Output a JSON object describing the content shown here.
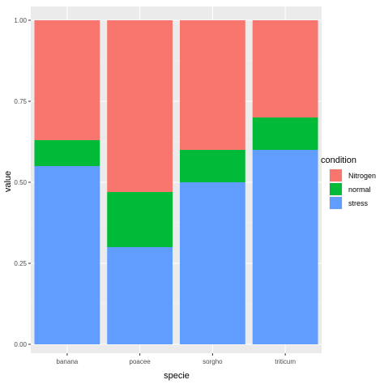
{
  "chart_data": {
    "type": "bar",
    "stacked": true,
    "categories": [
      "banana",
      "poacee",
      "sorgho",
      "triticum"
    ],
    "series": [
      {
        "name": "stress",
        "values": [
          0.55,
          0.3,
          0.5,
          0.6
        ],
        "color": "#619CFF"
      },
      {
        "name": "normal",
        "values": [
          0.08,
          0.17,
          0.1,
          0.1
        ],
        "color": "#00BA38"
      },
      {
        "name": "Nitrogen",
        "values": [
          0.37,
          0.53,
          0.4,
          0.3
        ],
        "color": "#F8766D"
      }
    ],
    "xlabel": "specie",
    "ylabel": "value",
    "ylim": [
      0,
      1
    ],
    "yticks": [
      "0.00",
      "0.25",
      "0.50",
      "0.75",
      "1.00"
    ],
    "ytick_values": [
      0,
      0.25,
      0.5,
      0.75,
      1.0
    ],
    "grid": true,
    "panel_background": "#EBEBEB",
    "legend": {
      "title": "condition",
      "placement": "right",
      "items": [
        "Nitrogen",
        "normal",
        "stress"
      ]
    }
  }
}
